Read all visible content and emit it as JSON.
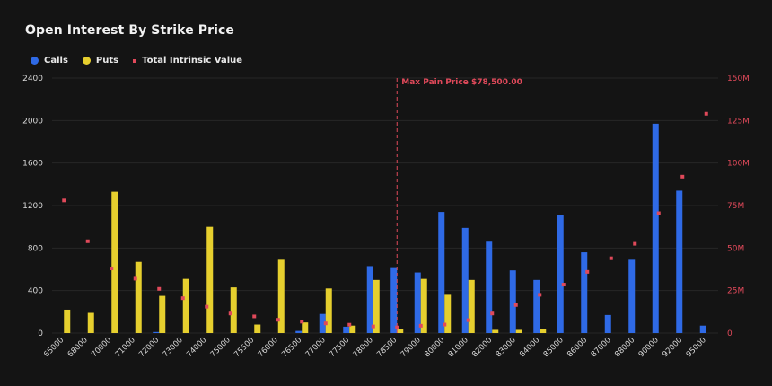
{
  "chart_data": {
    "type": "bar",
    "title": "Open Interest By Strike Price",
    "legend": [
      {
        "label": "Calls",
        "color": "#2f6ae6",
        "marker": "dot"
      },
      {
        "label": "Puts",
        "color": "#e6cf2e",
        "marker": "dot"
      },
      {
        "label": "Total Intrinsic Value",
        "color": "#e0495a",
        "marker": "square"
      }
    ],
    "categories": [
      "65000",
      "68000",
      "70000",
      "71000",
      "72000",
      "73000",
      "74000",
      "75000",
      "75500",
      "76000",
      "76500",
      "77000",
      "77500",
      "78000",
      "78500",
      "79000",
      "80000",
      "81000",
      "82000",
      "83000",
      "84000",
      "85000",
      "86000",
      "87000",
      "88000",
      "90000",
      "92000",
      "95000"
    ],
    "series": [
      {
        "name": "Calls",
        "color": "#2f6ae6",
        "axis": "left",
        "values": [
          0,
          0,
          0,
          0,
          10,
          0,
          0,
          0,
          0,
          0,
          20,
          180,
          60,
          630,
          620,
          570,
          1140,
          990,
          860,
          590,
          500,
          1110,
          760,
          170,
          690,
          1970,
          1340,
          70
        ]
      },
      {
        "name": "Puts",
        "color": "#e6cf2e",
        "axis": "left",
        "values": [
          220,
          190,
          1330,
          670,
          350,
          510,
          1000,
          430,
          80,
          690,
          100,
          420,
          70,
          500,
          40,
          510,
          360,
          500,
          30,
          30,
          40,
          0,
          0,
          0,
          0,
          0,
          0,
          0
        ]
      },
      {
        "name": "Total Intrinsic Value",
        "color": "#e0495a",
        "axis": "right",
        "type": "scatter",
        "values": [
          78000000,
          54000000,
          38000000,
          32000000,
          26000000,
          20500000,
          15500000,
          11500000,
          9800000,
          7800000,
          6700000,
          5700000,
          4900000,
          3900000,
          3300000,
          4300000,
          5000000,
          7600000,
          11500000,
          16500000,
          22500000,
          28500000,
          36000000,
          44000000,
          52500000,
          70500000,
          92000000,
          129000000
        ]
      }
    ],
    "y_left": {
      "ticks": [
        "0",
        "400",
        "800",
        "1200",
        "1600",
        "2000",
        "2400"
      ],
      "range": [
        0,
        2400
      ]
    },
    "y_right": {
      "ticks": [
        "0",
        "25M",
        "50M",
        "75M",
        "100M",
        "125M",
        "150M"
      ],
      "range": [
        0,
        150000000
      ]
    },
    "annotation": {
      "label": "Max Pain Price $78,500.00",
      "category": "78500",
      "color": "#e0495a"
    },
    "grid": true,
    "legend_position": "top-left"
  }
}
